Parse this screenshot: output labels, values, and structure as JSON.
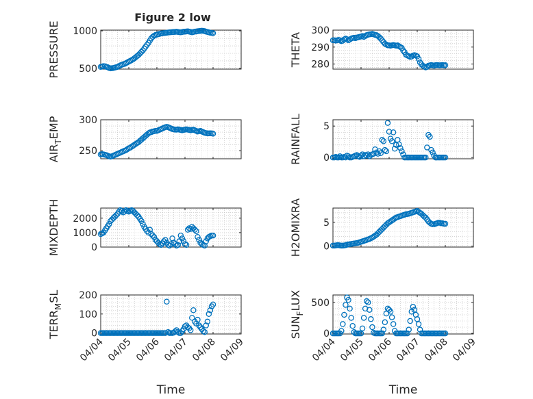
{
  "figure_title": "Figure 2 low",
  "x_axis": {
    "label": "Time",
    "ticks": [
      "04/04",
      "04/05",
      "04/06",
      "04/07",
      "04/08",
      "04/09"
    ],
    "range_days": [
      0,
      5
    ]
  },
  "marker_color": "#0072bd",
  "chart_data": [
    {
      "type": "scatter",
      "name": "pressure",
      "ylabel": "PRESSURE",
      "ylabel_sub": null,
      "ylim": [
        490,
        1010
      ],
      "yticks": [
        500,
        1000
      ],
      "col": 0,
      "row": 0,
      "title": "Figure 2 low",
      "x": [
        0.0,
        0.05,
        0.1,
        0.15,
        0.2,
        0.25,
        0.3,
        0.35,
        0.4,
        0.45,
        0.5,
        0.55,
        0.6,
        0.65,
        0.7,
        0.75,
        0.8,
        0.85,
        0.9,
        0.95,
        1.0,
        1.05,
        1.1,
        1.15,
        1.2,
        1.25,
        1.3,
        1.35,
        1.4,
        1.45,
        1.5,
        1.55,
        1.6,
        1.65,
        1.7,
        1.75,
        1.8,
        1.85,
        1.9,
        1.95,
        2.0,
        2.05,
        2.1,
        2.15,
        2.2,
        2.25,
        2.3,
        2.35,
        2.4,
        2.45,
        2.5,
        2.55,
        2.6,
        2.65,
        2.7,
        2.75,
        2.8,
        2.85,
        2.9,
        2.95,
        3.0,
        3.05,
        3.1,
        3.15,
        3.2,
        3.25,
        3.3,
        3.35,
        3.4,
        3.45,
        3.5,
        3.55,
        3.6,
        3.65,
        3.7,
        3.75,
        3.8,
        3.85,
        3.9,
        3.95,
        4.0
      ],
      "y": [
        520,
        525,
        530,
        528,
        520,
        515,
        505,
        500,
        502,
        505,
        510,
        515,
        520,
        530,
        540,
        548,
        555,
        560,
        570,
        580,
        590,
        600,
        610,
        620,
        635,
        650,
        665,
        680,
        700,
        720,
        740,
        765,
        790,
        815,
        840,
        870,
        900,
        920,
        935,
        945,
        950,
        955,
        960,
        965,
        968,
        970,
        972,
        975,
        978,
        980,
        982,
        984,
        985,
        986,
        988,
        985,
        982,
        980,
        984,
        988,
        990,
        992,
        994,
        990,
        985,
        980,
        985,
        990,
        992,
        995,
        998,
        1000,
        1002,
        1000,
        996,
        990,
        985,
        980,
        975,
        972,
        970
      ]
    },
    {
      "type": "scatter",
      "name": "theta",
      "ylabel": "THETA",
      "ylabel_sub": null,
      "ylim": [
        277,
        300
      ],
      "yticks": [
        280,
        290,
        300
      ],
      "col": 1,
      "row": 0,
      "x": [
        0.0,
        0.05,
        0.1,
        0.15,
        0.2,
        0.25,
        0.3,
        0.35,
        0.4,
        0.45,
        0.5,
        0.55,
        0.6,
        0.65,
        0.7,
        0.75,
        0.8,
        0.85,
        0.9,
        0.95,
        1.0,
        1.05,
        1.1,
        1.15,
        1.2,
        1.25,
        1.3,
        1.35,
        1.4,
        1.45,
        1.5,
        1.55,
        1.6,
        1.65,
        1.7,
        1.75,
        1.8,
        1.85,
        1.9,
        1.95,
        2.0,
        2.05,
        2.1,
        2.15,
        2.2,
        2.25,
        2.3,
        2.35,
        2.4,
        2.45,
        2.5,
        2.55,
        2.6,
        2.65,
        2.7,
        2.75,
        2.8,
        2.85,
        2.9,
        2.95,
        3.0,
        3.05,
        3.1,
        3.15,
        3.2,
        3.25,
        3.3,
        3.35,
        3.4,
        3.45,
        3.5,
        3.55,
        3.6,
        3.65,
        3.7,
        3.75,
        3.8,
        3.85,
        3.9,
        3.95,
        4.0
      ],
      "y": [
        294,
        294,
        293.8,
        294,
        294.2,
        294,
        293.5,
        293.8,
        294.5,
        295,
        294.6,
        294,
        294.5,
        295,
        295.3,
        295.5,
        295.2,
        295.6,
        295.8,
        296,
        296.2,
        296.5,
        296,
        296.5,
        297,
        297.3,
        297.5,
        297.6,
        297.8,
        297.5,
        297.2,
        297,
        296.5,
        295.8,
        295,
        294,
        293,
        292,
        291.5,
        291,
        291,
        290.8,
        291,
        291.2,
        291,
        290.8,
        291,
        290.5,
        290,
        289.5,
        288,
        287,
        285.5,
        285,
        284.6,
        284.2,
        284.4,
        285,
        285.2,
        285,
        284.5,
        283,
        281,
        279.8,
        279,
        278.5,
        278,
        278.3,
        279,
        279.2,
        279.4,
        279.2,
        279,
        279.3,
        279.4,
        279.3,
        279.2,
        279.3,
        279.4,
        279.2,
        279.3
      ]
    },
    {
      "type": "scatter",
      "name": "air_temp",
      "ylabel": "AIR",
      "ylabel_sub": "T",
      "ylabel_rest": "EMP",
      "ylim": [
        237,
        300
      ],
      "yticks": [
        250,
        300
      ],
      "col": 0,
      "row": 1,
      "x": [
        0.0,
        0.05,
        0.1,
        0.15,
        0.2,
        0.25,
        0.3,
        0.35,
        0.4,
        0.45,
        0.5,
        0.55,
        0.6,
        0.65,
        0.7,
        0.75,
        0.8,
        0.85,
        0.9,
        0.95,
        1.0,
        1.05,
        1.1,
        1.15,
        1.2,
        1.25,
        1.3,
        1.35,
        1.4,
        1.45,
        1.5,
        1.55,
        1.6,
        1.65,
        1.7,
        1.75,
        1.8,
        1.85,
        1.9,
        1.95,
        2.0,
        2.05,
        2.1,
        2.15,
        2.2,
        2.25,
        2.3,
        2.35,
        2.4,
        2.45,
        2.5,
        2.55,
        2.6,
        2.65,
        2.7,
        2.75,
        2.8,
        2.85,
        2.9,
        2.95,
        3.0,
        3.05,
        3.1,
        3.15,
        3.2,
        3.25,
        3.3,
        3.35,
        3.4,
        3.45,
        3.5,
        3.55,
        3.6,
        3.65,
        3.7,
        3.75,
        3.8,
        3.85,
        3.9,
        3.95,
        4.0
      ],
      "y": [
        244,
        244.5,
        244,
        243.5,
        243,
        242,
        241,
        240.5,
        241,
        242,
        243,
        244,
        245,
        246,
        247,
        248,
        249,
        250,
        251,
        252.5,
        254,
        255,
        256.5,
        258,
        259.5,
        261,
        262.5,
        264,
        266,
        268,
        270,
        272,
        274,
        276,
        278,
        279.5,
        280,
        281,
        281.5,
        282,
        282,
        283,
        284,
        285,
        286,
        287,
        288,
        288.5,
        288,
        287,
        286,
        285,
        284.5,
        284,
        284,
        284.5,
        284,
        283.5,
        283,
        283.5,
        284,
        284.5,
        284,
        283.5,
        283,
        283.5,
        284,
        283,
        282,
        281,
        281.5,
        282,
        281,
        280,
        279,
        278.5,
        278,
        278,
        278.2,
        278,
        277.5
      ]
    },
    {
      "type": "scatter",
      "name": "rainfall",
      "ylabel": "RAINFALL",
      "ylabel_sub": null,
      "ylim": [
        -0.2,
        6
      ],
      "yticks": [
        0,
        5
      ],
      "col": 1,
      "row": 1,
      "x": [
        0.0,
        0.05,
        0.1,
        0.15,
        0.2,
        0.25,
        0.3,
        0.35,
        0.4,
        0.45,
        0.5,
        0.55,
        0.6,
        0.65,
        0.7,
        0.75,
        0.8,
        0.85,
        0.9,
        0.95,
        1.0,
        1.05,
        1.1,
        1.15,
        1.2,
        1.25,
        1.3,
        1.35,
        1.4,
        1.45,
        1.5,
        1.55,
        1.6,
        1.65,
        1.7,
        1.75,
        1.8,
        1.85,
        1.9,
        1.95,
        2.0,
        2.05,
        2.1,
        2.15,
        2.2,
        2.25,
        2.3,
        2.35,
        2.4,
        2.45,
        2.5,
        2.55,
        2.6,
        2.65,
        2.7,
        2.75,
        2.8,
        2.85,
        2.9,
        2.95,
        3.0,
        3.05,
        3.1,
        3.15,
        3.2,
        3.25,
        3.3,
        3.35,
        3.4,
        3.45,
        3.5,
        3.55,
        3.6,
        3.65,
        3.7,
        3.75,
        3.8,
        3.85,
        3.9,
        3.95,
        4.0
      ],
      "y": [
        0,
        0,
        0.1,
        0,
        0,
        0.2,
        0,
        0,
        0.1,
        0,
        0.3,
        0.2,
        0,
        0,
        0.1,
        0.2,
        0.3,
        0.4,
        0.2,
        0.1,
        0.3,
        0.5,
        0.2,
        0.4,
        0.3,
        0.5,
        0.2,
        0.4,
        0.5,
        0.6,
        1.3,
        0.8,
        0.6,
        1.0,
        0.7,
        2.8,
        2.6,
        1.2,
        1.0,
        5.5,
        4.1,
        3.0,
        2.6,
        4.0,
        1.4,
        2.0,
        2.8,
        2.1,
        1.5,
        1.0,
        0.5,
        0,
        0,
        0,
        0,
        0,
        0,
        0,
        0,
        0,
        0,
        0,
        0,
        0,
        0,
        0,
        0,
        1.6,
        3.6,
        3.3,
        1.2,
        0.8,
        0.3,
        0,
        0,
        0,
        0,
        0,
        0,
        0,
        0
      ]
    },
    {
      "type": "scatter",
      "name": "mixdepth",
      "ylabel": "MIXDEPTH",
      "ylabel_sub": null,
      "ylim": [
        0,
        2700
      ],
      "yticks": [
        0,
        1000,
        2000
      ],
      "col": 0,
      "row": 2,
      "x": [
        0.0,
        0.05,
        0.1,
        0.15,
        0.2,
        0.25,
        0.3,
        0.35,
        0.4,
        0.45,
        0.5,
        0.55,
        0.6,
        0.65,
        0.7,
        0.75,
        0.8,
        0.85,
        0.9,
        0.95,
        1.0,
        1.05,
        1.1,
        1.15,
        1.2,
        1.25,
        1.3,
        1.35,
        1.4,
        1.45,
        1.5,
        1.55,
        1.6,
        1.65,
        1.7,
        1.75,
        1.8,
        1.85,
        1.9,
        1.95,
        2.0,
        2.05,
        2.1,
        2.15,
        2.2,
        2.25,
        2.3,
        2.35,
        2.4,
        2.45,
        2.5,
        2.55,
        2.6,
        2.65,
        2.7,
        2.75,
        2.8,
        2.85,
        2.9,
        2.95,
        3.0,
        3.05,
        3.1,
        3.15,
        3.2,
        3.25,
        3.3,
        3.35,
        3.4,
        3.45,
        3.5,
        3.55,
        3.6,
        3.65,
        3.7,
        3.75,
        3.8,
        3.85,
        3.9,
        3.95,
        4.0
      ],
      "y": [
        900,
        950,
        1000,
        1150,
        1300,
        1450,
        1600,
        1800,
        1900,
        2000,
        2100,
        2200,
        2300,
        2450,
        2550,
        2500,
        2400,
        2450,
        2550,
        2500,
        2450,
        2500,
        2550,
        2500,
        2400,
        2300,
        2200,
        2100,
        1950,
        1800,
        1600,
        1400,
        1250,
        1100,
        1000,
        1200,
        900,
        800,
        700,
        500,
        400,
        300,
        200,
        150,
        250,
        400,
        500,
        300,
        150,
        100,
        200,
        600,
        300,
        200,
        100,
        150,
        400,
        800,
        600,
        400,
        200,
        150,
        1200,
        1300,
        1250,
        1400,
        1300,
        1200,
        1100,
        700,
        500,
        300,
        200,
        150,
        100,
        400,
        600,
        700,
        750,
        800,
        800
      ]
    },
    {
      "type": "scatter",
      "name": "h2omixra",
      "ylabel": "H2OMIXRA",
      "ylabel_sub": null,
      "ylim": [
        -0.2,
        8
      ],
      "yticks": [
        0,
        5
      ],
      "col": 1,
      "row": 2,
      "x": [
        0.0,
        0.05,
        0.1,
        0.15,
        0.2,
        0.25,
        0.3,
        0.35,
        0.4,
        0.45,
        0.5,
        0.55,
        0.6,
        0.65,
        0.7,
        0.75,
        0.8,
        0.85,
        0.9,
        0.95,
        1.0,
        1.05,
        1.1,
        1.15,
        1.2,
        1.25,
        1.3,
        1.35,
        1.4,
        1.45,
        1.5,
        1.55,
        1.6,
        1.65,
        1.7,
        1.75,
        1.8,
        1.85,
        1.9,
        1.95,
        2.0,
        2.05,
        2.1,
        2.15,
        2.2,
        2.25,
        2.3,
        2.35,
        2.4,
        2.45,
        2.5,
        2.55,
        2.6,
        2.65,
        2.7,
        2.75,
        2.8,
        2.85,
        2.9,
        2.95,
        3.0,
        3.05,
        3.1,
        3.15,
        3.2,
        3.25,
        3.3,
        3.35,
        3.4,
        3.45,
        3.5,
        3.55,
        3.6,
        3.65,
        3.7,
        3.75,
        3.8,
        3.85,
        3.9,
        3.95,
        4.0
      ],
      "y": [
        0.1,
        0.1,
        0.15,
        0.2,
        0.2,
        0.15,
        0.1,
        0.1,
        0.15,
        0.2,
        0.3,
        0.35,
        0.4,
        0.45,
        0.5,
        0.55,
        0.6,
        0.65,
        0.7,
        0.8,
        0.9,
        1.0,
        1.1,
        1.2,
        1.3,
        1.4,
        1.5,
        1.65,
        1.8,
        2.0,
        2.2,
        2.4,
        2.7,
        3.0,
        3.3,
        3.6,
        3.9,
        4.2,
        4.5,
        4.8,
        5.0,
        5.2,
        5.4,
        5.6,
        5.8,
        6.0,
        6.1,
        6.2,
        6.3,
        6.4,
        6.5,
        6.6,
        6.7,
        6.75,
        6.8,
        6.9,
        7.0,
        7.1,
        7.2,
        7.3,
        7.4,
        7.2,
        7.0,
        6.8,
        6.5,
        6.2,
        6.0,
        5.6,
        5.2,
        4.9,
        4.7,
        4.6,
        4.6,
        4.7,
        4.8,
        4.9,
        4.9,
        4.8,
        4.8,
        4.7,
        4.7
      ]
    },
    {
      "type": "scatter",
      "name": "terr_msl",
      "ylabel": "TERR",
      "ylabel_sub": "M",
      "ylabel_rest": "SL",
      "ylim": [
        -5,
        200
      ],
      "yticks": [
        0,
        100,
        200
      ],
      "col": 0,
      "row": 3,
      "x": [
        0.0,
        0.05,
        0.1,
        0.15,
        0.2,
        0.25,
        0.3,
        0.35,
        0.4,
        0.45,
        0.5,
        0.55,
        0.6,
        0.65,
        0.7,
        0.75,
        0.8,
        0.85,
        0.9,
        0.95,
        1.0,
        1.05,
        1.1,
        1.15,
        1.2,
        1.25,
        1.3,
        1.35,
        1.4,
        1.45,
        1.5,
        1.55,
        1.6,
        1.65,
        1.7,
        1.75,
        1.8,
        1.85,
        1.9,
        1.95,
        2.0,
        2.05,
        2.1,
        2.15,
        2.2,
        2.25,
        2.3,
        2.35,
        2.4,
        2.45,
        2.5,
        2.55,
        2.6,
        2.65,
        2.7,
        2.75,
        2.8,
        2.85,
        2.9,
        2.95,
        3.0,
        3.05,
        3.1,
        3.15,
        3.2,
        3.25,
        3.3,
        3.35,
        3.4,
        3.45,
        3.5,
        3.55,
        3.6,
        3.65,
        3.7,
        3.75,
        3.8,
        3.85,
        3.9,
        3.95,
        4.0
      ],
      "y": [
        0,
        0,
        0,
        0,
        0,
        0,
        0,
        0,
        0,
        0,
        0,
        0,
        0,
        0,
        0,
        0,
        0,
        0,
        0,
        0,
        0,
        0,
        0,
        0,
        0,
        0,
        0,
        0,
        0,
        0,
        0,
        0,
        0,
        0,
        0,
        0,
        0,
        0,
        0,
        0,
        0,
        0,
        0,
        0,
        0,
        0,
        0,
        165,
        5,
        0,
        0,
        0,
        2,
        8,
        15,
        5,
        0,
        0,
        10,
        20,
        35,
        40,
        30,
        25,
        15,
        80,
        120,
        60,
        50,
        70,
        40,
        30,
        20,
        10,
        5,
        40,
        60,
        100,
        120,
        140,
        150
      ]
    },
    {
      "type": "scatter",
      "name": "sun_flux",
      "ylabel": "SUN",
      "ylabel_sub": "F",
      "ylabel_rest": "LUX",
      "ylim": [
        -10,
        620
      ],
      "yticks": [
        0,
        500
      ],
      "col": 1,
      "row": 3,
      "x": [
        0.0,
        0.05,
        0.1,
        0.15,
        0.2,
        0.25,
        0.3,
        0.35,
        0.4,
        0.45,
        0.5,
        0.55,
        0.6,
        0.65,
        0.7,
        0.75,
        0.8,
        0.85,
        0.9,
        0.95,
        1.0,
        1.05,
        1.1,
        1.15,
        1.2,
        1.25,
        1.3,
        1.35,
        1.4,
        1.45,
        1.5,
        1.55,
        1.6,
        1.65,
        1.7,
        1.75,
        1.8,
        1.85,
        1.9,
        1.95,
        2.0,
        2.05,
        2.1,
        2.15,
        2.2,
        2.25,
        2.3,
        2.35,
        2.4,
        2.45,
        2.5,
        2.55,
        2.6,
        2.65,
        2.7,
        2.75,
        2.8,
        2.85,
        2.9,
        2.95,
        3.0,
        3.05,
        3.1,
        3.15,
        3.2,
        3.25,
        3.3,
        3.35,
        3.4,
        3.45,
        3.5,
        3.55,
        3.6,
        3.65,
        3.7,
        3.75,
        3.8,
        3.85,
        3.9,
        3.95,
        4.0
      ],
      "y": [
        0,
        0,
        0,
        0,
        0,
        0,
        40,
        150,
        300,
        460,
        580,
        540,
        400,
        250,
        120,
        20,
        0,
        0,
        0,
        0,
        0,
        80,
        250,
        400,
        520,
        500,
        380,
        230,
        100,
        10,
        0,
        0,
        0,
        0,
        0,
        0,
        60,
        180,
        320,
        400,
        380,
        350,
        260,
        150,
        40,
        0,
        0,
        0,
        0,
        0,
        0,
        0,
        0,
        0,
        60,
        200,
        350,
        430,
        380,
        300,
        230,
        150,
        60,
        0,
        0,
        0,
        0,
        0,
        0,
        0,
        0,
        0,
        0,
        0,
        0,
        0,
        0,
        0,
        0,
        0,
        0
      ]
    }
  ]
}
